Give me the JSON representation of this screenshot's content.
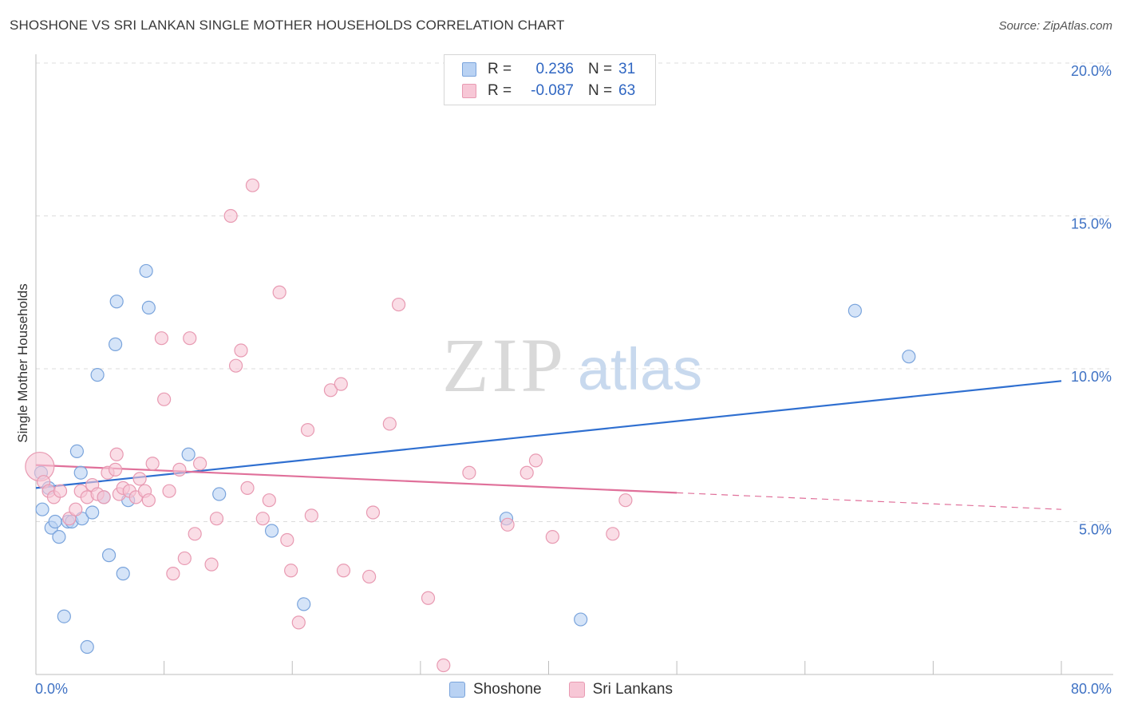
{
  "header": {
    "title": "SHOSHONE VS SRI LANKAN SINGLE MOTHER HOUSEHOLDS CORRELATION CHART",
    "source": "Source: ZipAtlas.com"
  },
  "legend": {
    "rows": [
      {
        "r_key": "R =",
        "r_value": "0.236",
        "n_key": "N =",
        "n_value": "31"
      },
      {
        "r_key": "R =",
        "r_value": "-0.087",
        "n_key": "N =",
        "n_value": "63"
      }
    ]
  },
  "watermark": {
    "zip": "ZIP",
    "atlas": "atlas"
  },
  "colors": {
    "shoshone_fill": "#b9d2f3",
    "shoshone_stroke": "#7aa4dc",
    "shoshone_line": "#2f6fd0",
    "srilankan_fill": "#f7c7d6",
    "srilankan_stroke": "#e89ab2",
    "srilankan_line": "#e0709a",
    "grid": "#dcdcdc",
    "tick_label": "#3f72c4"
  },
  "chart_data": {
    "type": "scatter",
    "title": "SHOSHONE VS SRI LANKAN SINGLE MOTHER HOUSEHOLDS CORRELATION CHART",
    "xlabel": "",
    "ylabel": "Single Mother Households",
    "xlim": [
      0,
      80
    ],
    "ylim": [
      0,
      20
    ],
    "x_tick_labels": [
      "0.0%",
      "80.0%"
    ],
    "y_ticks": [
      5,
      10,
      15,
      20
    ],
    "y_tick_labels": [
      "5.0%",
      "10.0%",
      "15.0%",
      "20.0%"
    ],
    "grid": true,
    "legend_position": "top-center",
    "series": [
      {
        "name": "Shoshone",
        "color": "#b9d2f3",
        "trend": {
          "x": [
            0,
            80
          ],
          "y": [
            6.1,
            9.6
          ],
          "dashed_from": null
        },
        "points": [
          {
            "x": 0.4,
            "y": 6.6
          },
          {
            "x": 0.5,
            "y": 5.4
          },
          {
            "x": 1.0,
            "y": 6.1
          },
          {
            "x": 1.2,
            "y": 4.8
          },
          {
            "x": 1.5,
            "y": 5.0
          },
          {
            "x": 1.8,
            "y": 4.5
          },
          {
            "x": 2.2,
            "y": 1.9
          },
          {
            "x": 2.5,
            "y": 5.0
          },
          {
            "x": 2.8,
            "y": 5.0
          },
          {
            "x": 3.2,
            "y": 7.3
          },
          {
            "x": 3.5,
            "y": 6.6
          },
          {
            "x": 3.6,
            "y": 5.1
          },
          {
            "x": 4.0,
            "y": 0.9
          },
          {
            "x": 4.4,
            "y": 5.3
          },
          {
            "x": 4.8,
            "y": 9.8
          },
          {
            "x": 5.3,
            "y": 5.8
          },
          {
            "x": 5.7,
            "y": 3.9
          },
          {
            "x": 6.2,
            "y": 10.8
          },
          {
            "x": 6.3,
            "y": 12.2
          },
          {
            "x": 6.8,
            "y": 3.3
          },
          {
            "x": 7.2,
            "y": 5.7
          },
          {
            "x": 8.6,
            "y": 13.2
          },
          {
            "x": 8.8,
            "y": 12.0
          },
          {
            "x": 11.9,
            "y": 7.2
          },
          {
            "x": 14.3,
            "y": 5.9
          },
          {
            "x": 18.4,
            "y": 4.7
          },
          {
            "x": 20.9,
            "y": 2.3
          },
          {
            "x": 36.7,
            "y": 5.1
          },
          {
            "x": 42.5,
            "y": 1.8
          },
          {
            "x": 63.9,
            "y": 11.9
          },
          {
            "x": 68.1,
            "y": 10.4
          }
        ]
      },
      {
        "name": "Sri Lankans",
        "color": "#f7c7d6",
        "trend": {
          "x": [
            0,
            80
          ],
          "y": [
            6.85,
            5.4
          ],
          "dashed_from": 50
        },
        "points": [
          {
            "x": 0.3,
            "y": 6.8
          },
          {
            "x": 0.6,
            "y": 6.3
          },
          {
            "x": 1.0,
            "y": 6.0
          },
          {
            "x": 1.4,
            "y": 5.8
          },
          {
            "x": 1.9,
            "y": 6.0
          },
          {
            "x": 2.6,
            "y": 5.1
          },
          {
            "x": 3.1,
            "y": 5.4
          },
          {
            "x": 3.5,
            "y": 6.0
          },
          {
            "x": 4.0,
            "y": 5.8
          },
          {
            "x": 4.4,
            "y": 6.2
          },
          {
            "x": 4.8,
            "y": 5.9
          },
          {
            "x": 5.3,
            "y": 5.8
          },
          {
            "x": 5.6,
            "y": 6.6
          },
          {
            "x": 6.2,
            "y": 6.7
          },
          {
            "x": 6.5,
            "y": 5.9
          },
          {
            "x": 6.3,
            "y": 7.2
          },
          {
            "x": 6.8,
            "y": 6.1
          },
          {
            "x": 7.3,
            "y": 6.0
          },
          {
            "x": 7.8,
            "y": 5.8
          },
          {
            "x": 8.1,
            "y": 6.4
          },
          {
            "x": 8.5,
            "y": 6.0
          },
          {
            "x": 8.8,
            "y": 5.7
          },
          {
            "x": 9.1,
            "y": 6.9
          },
          {
            "x": 9.8,
            "y": 11.0
          },
          {
            "x": 10.0,
            "y": 9.0
          },
          {
            "x": 10.4,
            "y": 6.0
          },
          {
            "x": 10.7,
            "y": 3.3
          },
          {
            "x": 11.2,
            "y": 6.7
          },
          {
            "x": 11.6,
            "y": 3.8
          },
          {
            "x": 12.0,
            "y": 11.0
          },
          {
            "x": 12.4,
            "y": 4.6
          },
          {
            "x": 12.8,
            "y": 6.9
          },
          {
            "x": 13.7,
            "y": 3.6
          },
          {
            "x": 14.1,
            "y": 5.1
          },
          {
            "x": 15.2,
            "y": 15.0
          },
          {
            "x": 15.6,
            "y": 10.1
          },
          {
            "x": 16.0,
            "y": 10.6
          },
          {
            "x": 16.5,
            "y": 6.1
          },
          {
            "x": 16.9,
            "y": 16.0
          },
          {
            "x": 17.7,
            "y": 5.1
          },
          {
            "x": 18.2,
            "y": 5.7
          },
          {
            "x": 19.0,
            "y": 12.5
          },
          {
            "x": 19.6,
            "y": 4.4
          },
          {
            "x": 19.9,
            "y": 3.4
          },
          {
            "x": 20.5,
            "y": 1.7
          },
          {
            "x": 21.2,
            "y": 8.0
          },
          {
            "x": 21.5,
            "y": 5.2
          },
          {
            "x": 23.0,
            "y": 9.3
          },
          {
            "x": 23.8,
            "y": 9.5
          },
          {
            "x": 24.0,
            "y": 3.4
          },
          {
            "x": 26.0,
            "y": 3.2
          },
          {
            "x": 26.3,
            "y": 5.3
          },
          {
            "x": 27.6,
            "y": 8.2
          },
          {
            "x": 28.3,
            "y": 12.1
          },
          {
            "x": 30.6,
            "y": 2.5
          },
          {
            "x": 31.8,
            "y": 0.3
          },
          {
            "x": 33.8,
            "y": 6.6
          },
          {
            "x": 36.8,
            "y": 4.9
          },
          {
            "x": 38.3,
            "y": 6.6
          },
          {
            "x": 39.0,
            "y": 7.0
          },
          {
            "x": 40.3,
            "y": 4.5
          },
          {
            "x": 45.0,
            "y": 4.6
          },
          {
            "x": 46.0,
            "y": 5.7
          }
        ]
      }
    ]
  }
}
